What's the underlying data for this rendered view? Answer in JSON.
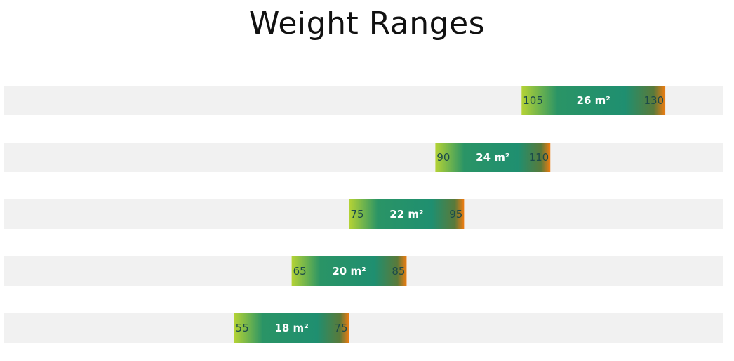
{
  "chart_data": {
    "type": "bar",
    "title": "Weight Ranges",
    "xlim": [
      15,
      140
    ],
    "grid": false,
    "ranges": [
      {
        "category": "26 m²",
        "start": 105,
        "end": 130,
        "start_label": "105",
        "end_label": "130"
      },
      {
        "category": "24 m²",
        "start": 90,
        "end": 110,
        "start_label": "90",
        "end_label": "110"
      },
      {
        "category": "22 m²",
        "start": 75,
        "end": 95,
        "start_label": "75",
        "end_label": "95"
      },
      {
        "category": "20 m²",
        "start": 65,
        "end": 85,
        "start_label": "65",
        "end_label": "85"
      },
      {
        "category": "18 m²",
        "start": 55,
        "end": 75,
        "start_label": "55",
        "end_label": "75"
      }
    ],
    "colors": {
      "track": "#f1f1f1",
      "gradient_start": "#b5d335",
      "gradient_mid": "#1f8f70",
      "gradient_end": "#f07c10"
    }
  }
}
